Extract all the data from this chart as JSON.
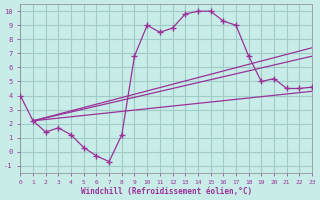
{
  "xlabel": "Windchill (Refroidissement éolien,°C)",
  "bg_color": "#c8ece8",
  "grid_color": "#a0ccc8",
  "line_color": "#993399",
  "xlim": [
    0,
    23
  ],
  "ylim": [
    -1.5,
    10.5
  ],
  "xticks": [
    0,
    1,
    2,
    3,
    4,
    5,
    6,
    7,
    8,
    9,
    10,
    11,
    12,
    13,
    14,
    15,
    16,
    17,
    18,
    19,
    20,
    21,
    22,
    23
  ],
  "yticks": [
    -1,
    0,
    1,
    2,
    3,
    4,
    5,
    6,
    7,
    8,
    9,
    10
  ],
  "main_x": [
    0,
    1,
    2,
    3,
    4,
    5,
    6,
    7,
    8,
    9,
    10,
    11,
    12,
    13,
    14,
    15,
    16,
    17,
    18,
    19,
    20,
    21,
    22,
    23
  ],
  "main_y": [
    4.0,
    2.2,
    1.4,
    1.7,
    1.2,
    0.3,
    -0.3,
    -0.7,
    1.2,
    6.8,
    9.0,
    8.5,
    8.8,
    9.8,
    10.0,
    10.0,
    9.3,
    9.0,
    6.8,
    5.0,
    5.2,
    4.5,
    4.5,
    4.6
  ],
  "line1_x": [
    1,
    23
  ],
  "line1_y": [
    2.2,
    7.4
  ],
  "line2_x": [
    1,
    23
  ],
  "line2_y": [
    2.2,
    6.8
  ],
  "line3_x": [
    1,
    23
  ],
  "line3_y": [
    2.2,
    4.3
  ]
}
